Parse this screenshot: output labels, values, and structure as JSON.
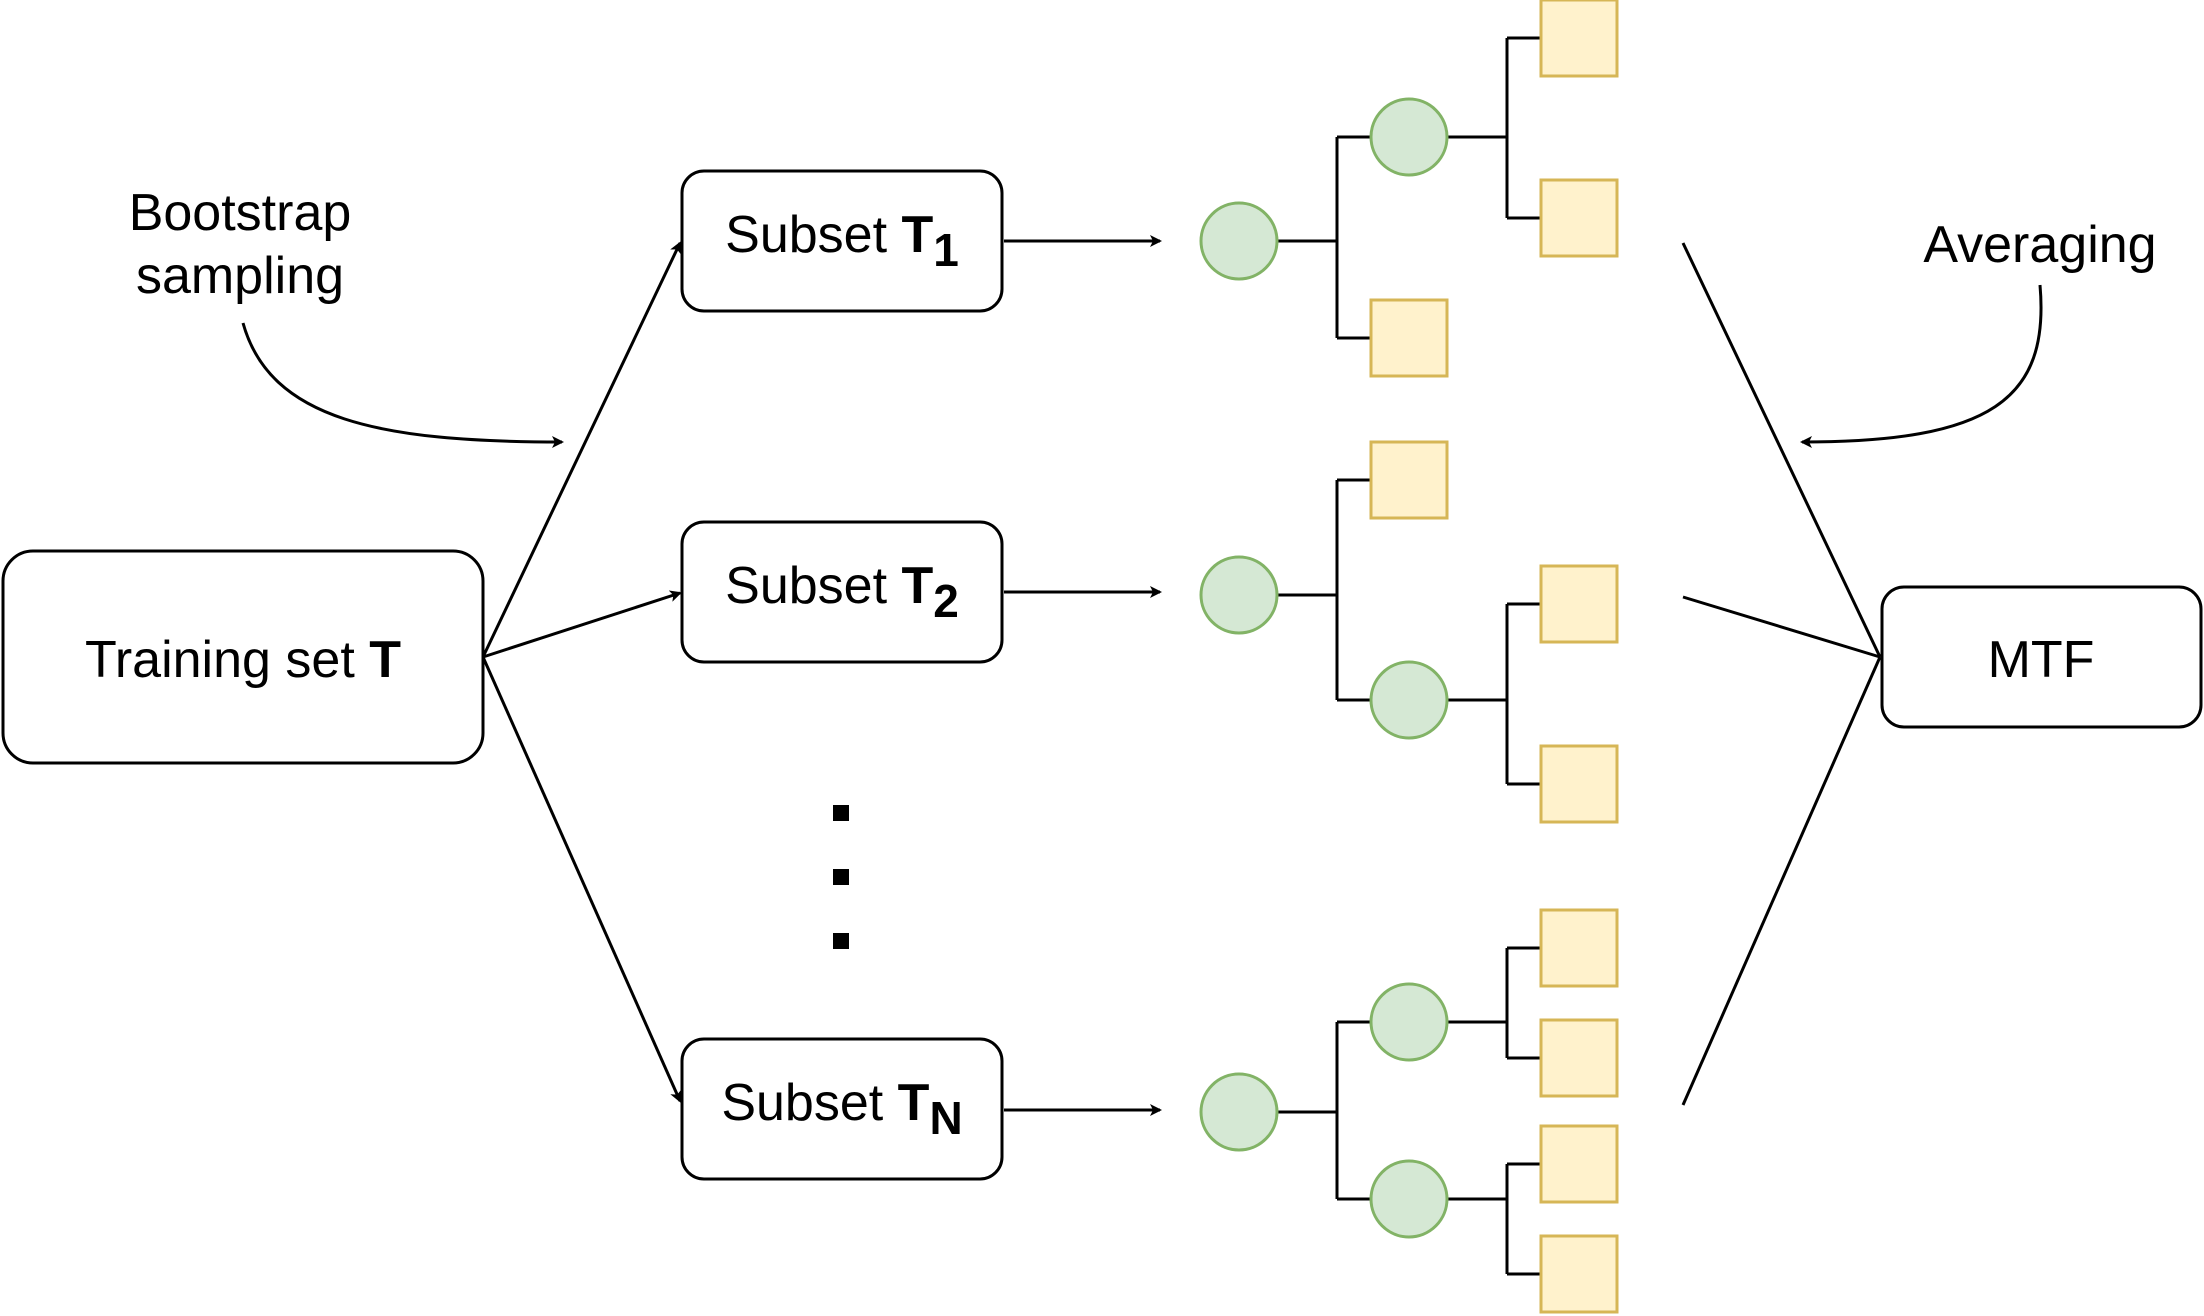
{
  "input": {
    "label": "Training set ",
    "symbol": "T"
  },
  "annotations": {
    "bootstrap_line1": "Bootstrap",
    "bootstrap_line2": "sampling",
    "averaging": "Averaging"
  },
  "subsets": [
    {
      "label": "Subset ",
      "symbol": "T",
      "subscript": "1"
    },
    {
      "label": "Subset ",
      "symbol": "T",
      "subscript": "2"
    },
    {
      "label": "Subset ",
      "symbol": "T",
      "subscript": "N"
    }
  ],
  "output": {
    "label": "MTF"
  },
  "colors": {
    "node_fill": "#d5e8d4",
    "node_stroke": "#82b366",
    "leaf_fill": "#fff2cc",
    "leaf_stroke": "#d6b656"
  }
}
